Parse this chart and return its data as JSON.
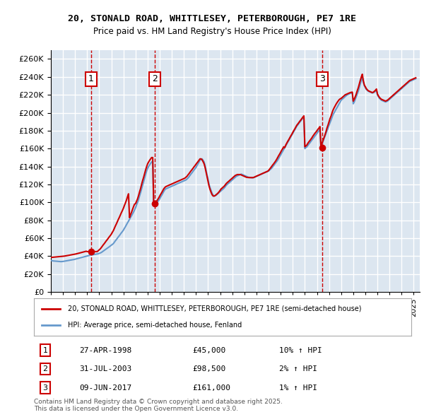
{
  "title_line1": "20, STONALD ROAD, WHITTLESEY, PETERBOROUGH, PE7 1RE",
  "title_line2": "Price paid vs. HM Land Registry's House Price Index (HPI)",
  "ylabel": "",
  "ylim": [
    0,
    270000
  ],
  "yticks": [
    0,
    20000,
    40000,
    60000,
    80000,
    100000,
    120000,
    140000,
    160000,
    180000,
    200000,
    220000,
    240000,
    260000
  ],
  "xlim_start": 1995.0,
  "xlim_end": 2025.5,
  "background_color": "#ffffff",
  "plot_bg_color": "#dce6f0",
  "grid_color": "#ffffff",
  "hpi_line_color": "#6699cc",
  "price_line_color": "#cc0000",
  "sale_marker_color": "#cc0000",
  "vline_color": "#cc0000",
  "legend_label_price": "20, STONALD ROAD, WHITTLESEY, PETERBOROUGH, PE7 1RE (semi-detached house)",
  "legend_label_hpi": "HPI: Average price, semi-detached house, Fenland",
  "sales": [
    {
      "num": 1,
      "date_label": "27-APR-1998",
      "price": 45000,
      "pct": "10%",
      "year": 1998.32
    },
    {
      "num": 2,
      "date_label": "31-JUL-2003",
      "price": 98500,
      "pct": "2%",
      "year": 2003.58
    },
    {
      "num": 3,
      "date_label": "09-JUN-2017",
      "price": 161000,
      "pct": "1%",
      "year": 2017.44
    }
  ],
  "footer_text": "Contains HM Land Registry data © Crown copyright and database right 2025.\nThis data is licensed under the Open Government Licence v3.0.",
  "hpi_data": {
    "years": [
      1995.0,
      1995.08,
      1995.17,
      1995.25,
      1995.33,
      1995.42,
      1995.5,
      1995.58,
      1995.67,
      1995.75,
      1995.83,
      1995.92,
      1996.0,
      1996.08,
      1996.17,
      1996.25,
      1996.33,
      1996.42,
      1996.5,
      1996.58,
      1996.67,
      1996.75,
      1996.83,
      1996.92,
      1997.0,
      1997.08,
      1997.17,
      1997.25,
      1997.33,
      1997.42,
      1997.5,
      1997.58,
      1997.67,
      1997.75,
      1997.83,
      1997.92,
      1998.0,
      1998.08,
      1998.17,
      1998.25,
      1998.33,
      1998.42,
      1998.5,
      1998.58,
      1998.67,
      1998.75,
      1998.83,
      1998.92,
      1999.0,
      1999.08,
      1999.17,
      1999.25,
      1999.33,
      1999.42,
      1999.5,
      1999.58,
      1999.67,
      1999.75,
      1999.83,
      1999.92,
      2000.0,
      2000.08,
      2000.17,
      2000.25,
      2000.33,
      2000.42,
      2000.5,
      2000.58,
      2000.67,
      2000.75,
      2000.83,
      2000.92,
      2001.0,
      2001.08,
      2001.17,
      2001.25,
      2001.33,
      2001.42,
      2001.5,
      2001.58,
      2001.67,
      2001.75,
      2001.83,
      2001.92,
      2002.0,
      2002.08,
      2002.17,
      2002.25,
      2002.33,
      2002.42,
      2002.5,
      2002.58,
      2002.67,
      2002.75,
      2002.83,
      2002.92,
      2003.0,
      2003.08,
      2003.17,
      2003.25,
      2003.33,
      2003.42,
      2003.5,
      2003.58,
      2003.67,
      2003.75,
      2003.83,
      2003.92,
      2004.0,
      2004.08,
      2004.17,
      2004.25,
      2004.33,
      2004.42,
      2004.5,
      2004.58,
      2004.67,
      2004.75,
      2004.83,
      2004.92,
      2005.0,
      2005.08,
      2005.17,
      2005.25,
      2005.33,
      2005.42,
      2005.5,
      2005.58,
      2005.67,
      2005.75,
      2005.83,
      2005.92,
      2006.0,
      2006.08,
      2006.17,
      2006.25,
      2006.33,
      2006.42,
      2006.5,
      2006.58,
      2006.67,
      2006.75,
      2006.83,
      2006.92,
      2007.0,
      2007.08,
      2007.17,
      2007.25,
      2007.33,
      2007.42,
      2007.5,
      2007.58,
      2007.67,
      2007.75,
      2007.83,
      2007.92,
      2008.0,
      2008.08,
      2008.17,
      2008.25,
      2008.33,
      2008.42,
      2008.5,
      2008.58,
      2008.67,
      2008.75,
      2008.83,
      2008.92,
      2009.0,
      2009.08,
      2009.17,
      2009.25,
      2009.33,
      2009.42,
      2009.5,
      2009.58,
      2009.67,
      2009.75,
      2009.83,
      2009.92,
      2010.0,
      2010.08,
      2010.17,
      2010.25,
      2010.33,
      2010.42,
      2010.5,
      2010.58,
      2010.67,
      2010.75,
      2010.83,
      2010.92,
      2011.0,
      2011.08,
      2011.17,
      2011.25,
      2011.33,
      2011.42,
      2011.5,
      2011.58,
      2011.67,
      2011.75,
      2011.83,
      2011.92,
      2012.0,
      2012.08,
      2012.17,
      2012.25,
      2012.33,
      2012.42,
      2012.5,
      2012.58,
      2012.67,
      2012.75,
      2012.83,
      2012.92,
      2013.0,
      2013.08,
      2013.17,
      2013.25,
      2013.33,
      2013.42,
      2013.5,
      2013.58,
      2013.67,
      2013.75,
      2013.83,
      2013.92,
      2014.0,
      2014.08,
      2014.17,
      2014.25,
      2014.33,
      2014.42,
      2014.5,
      2014.58,
      2014.67,
      2014.75,
      2014.83,
      2014.92,
      2015.0,
      2015.08,
      2015.17,
      2015.25,
      2015.33,
      2015.42,
      2015.5,
      2015.58,
      2015.67,
      2015.75,
      2015.83,
      2015.92,
      2016.0,
      2016.08,
      2016.17,
      2016.25,
      2016.33,
      2016.42,
      2016.5,
      2016.58,
      2016.67,
      2016.75,
      2016.83,
      2016.92,
      2017.0,
      2017.08,
      2017.17,
      2017.25,
      2017.33,
      2017.42,
      2017.5,
      2017.58,
      2017.67,
      2017.75,
      2017.83,
      2017.92,
      2018.0,
      2018.08,
      2018.17,
      2018.25,
      2018.33,
      2018.42,
      2018.5,
      2018.58,
      2018.67,
      2018.75,
      2018.83,
      2018.92,
      2019.0,
      2019.08,
      2019.17,
      2019.25,
      2019.33,
      2019.42,
      2019.5,
      2019.58,
      2019.67,
      2019.75,
      2019.83,
      2019.92,
      2020.0,
      2020.08,
      2020.17,
      2020.25,
      2020.33,
      2020.42,
      2020.5,
      2020.58,
      2020.67,
      2020.75,
      2020.83,
      2020.92,
      2021.0,
      2021.08,
      2021.17,
      2021.25,
      2021.33,
      2021.42,
      2021.5,
      2021.58,
      2021.67,
      2021.75,
      2021.83,
      2021.92,
      2022.0,
      2022.08,
      2022.17,
      2022.25,
      2022.33,
      2022.42,
      2022.5,
      2022.58,
      2022.67,
      2022.75,
      2022.83,
      2022.92,
      2023.0,
      2023.08,
      2023.17,
      2023.25,
      2023.33,
      2023.42,
      2023.5,
      2023.58,
      2023.67,
      2023.75,
      2023.83,
      2023.92,
      2024.0,
      2024.08,
      2024.17,
      2024.25,
      2024.33,
      2024.42,
      2024.5,
      2024.58,
      2024.67,
      2024.75,
      2024.83,
      2024.92,
      2025.0,
      2025.08,
      2025.17
    ],
    "hpi_values": [
      35000,
      34800,
      34600,
      34500,
      34400,
      34300,
      34200,
      34100,
      34000,
      33900,
      33800,
      33900,
      34000,
      34200,
      34400,
      34600,
      34800,
      35000,
      35200,
      35400,
      35600,
      35800,
      36000,
      36200,
      36500,
      36800,
      37100,
      37400,
      37700,
      38000,
      38300,
      38600,
      38900,
      39200,
      39500,
      39800,
      40100,
      40400,
      40700,
      41000,
      41200,
      41400,
      41600,
      41800,
      42000,
      42200,
      42400,
      42600,
      43000,
      43500,
      44000,
      44800,
      45600,
      46400,
      47200,
      48000,
      48800,
      49600,
      50400,
      51200,
      52000,
      53000,
      54000,
      55500,
      57000,
      58500,
      60000,
      61500,
      63000,
      64500,
      66000,
      67500,
      69000,
      71000,
      73000,
      75000,
      77000,
      79000,
      81000,
      83000,
      85000,
      87000,
      89000,
      91500,
      94000,
      97000,
      100000,
      103000,
      107000,
      111000,
      115000,
      119000,
      123000,
      127000,
      131000,
      135000,
      138000,
      140000,
      142000,
      143500,
      145000,
      146000,
      97000,
      98500,
      99000,
      100000,
      101000,
      102000,
      104000,
      106000,
      108000,
      110000,
      112000,
      114000,
      115000,
      115500,
      116000,
      116500,
      117000,
      117500,
      118000,
      118500,
      119000,
      119500,
      120000,
      120500,
      121000,
      121500,
      122000,
      122500,
      123000,
      123500,
      124000,
      124500,
      125000,
      126000,
      127000,
      128500,
      130000,
      131500,
      133000,
      134500,
      136000,
      137500,
      139000,
      141000,
      143000,
      145000,
      147000,
      148000,
      148500,
      147000,
      145000,
      141000,
      136000,
      130000,
      125000,
      120000,
      116000,
      113000,
      110000,
      108000,
      107000,
      107500,
      108000,
      109000,
      110000,
      111000,
      112000,
      113000,
      114000,
      115000,
      116000,
      117500,
      119000,
      120000,
      121000,
      122000,
      123000,
      124000,
      125000,
      126000,
      127000,
      128000,
      129000,
      129500,
      130000,
      130500,
      131000,
      131500,
      131000,
      130500,
      130000,
      129500,
      129000,
      128500,
      128000,
      127800,
      127600,
      127500,
      127400,
      127500,
      128000,
      128500,
      129000,
      129500,
      130000,
      130500,
      131000,
      131500,
      132000,
      132500,
      133000,
      133500,
      134000,
      134500,
      135000,
      136000,
      137000,
      138000,
      139500,
      141000,
      142500,
      144000,
      145500,
      147000,
      149000,
      151000,
      153000,
      155000,
      157000,
      159000,
      161000,
      163000,
      165000,
      167000,
      169000,
      171000,
      173000,
      175000,
      177000,
      179000,
      181000,
      183000,
      185000,
      186500,
      188000,
      189500,
      191000,
      192500,
      194000,
      195500,
      160000,
      161000,
      162000,
      163500,
      165000,
      166500,
      168000,
      169500,
      171000,
      172500,
      174000,
      175500,
      177000,
      178500,
      180000,
      181500,
      161000,
      165000,
      168000,
      171000,
      174000,
      177000,
      180000,
      183000,
      186000,
      189000,
      192000,
      195000,
      198000,
      200000,
      202000,
      204000,
      206000,
      208000,
      210000,
      212000,
      214000,
      215000,
      216000,
      217000,
      218000,
      219000,
      220000,
      220500,
      221000,
      221500,
      222000,
      222500,
      210000,
      212000,
      215000,
      218000,
      221000,
      224000,
      228000,
      232000,
      236000,
      240000,
      234000,
      230000,
      228000,
      226000,
      225000,
      224000,
      223500,
      223000,
      222500,
      222000,
      222500,
      223000,
      224000,
      225000,
      220000,
      218000,
      216000,
      215000,
      214000,
      213500,
      213000,
      212500,
      212000,
      212500,
      213000,
      214000,
      215000,
      216000,
      217000,
      218000,
      219000,
      220000,
      221000,
      222000,
      223000,
      224000,
      225000,
      226000,
      227000,
      228000,
      229000,
      230000,
      231000,
      232000,
      233000,
      234000,
      235000,
      235500,
      236000,
      236500,
      237000,
      237500,
      238000
    ],
    "price_values": [
      38500,
      38600,
      38700,
      38800,
      38900,
      39000,
      39100,
      39200,
      39300,
      39400,
      39500,
      39600,
      39700,
      39900,
      40100,
      40300,
      40500,
      40700,
      40900,
      41100,
      41300,
      41500,
      41700,
      41900,
      42100,
      42400,
      42700,
      43000,
      43300,
      43600,
      43900,
      44200,
      44500,
      44800,
      45100,
      45400,
      45000,
      45000,
      45000,
      45000,
      45000,
      45000,
      45000,
      45000,
      45000,
      45000,
      45000,
      46000,
      47000,
      48000,
      49500,
      51000,
      52500,
      54000,
      55500,
      57000,
      58500,
      60000,
      61500,
      63000,
      64500,
      66500,
      68500,
      71000,
      73500,
      76000,
      78500,
      81000,
      83500,
      86000,
      88500,
      91000,
      93500,
      96500,
      99500,
      102500,
      106000,
      109500,
      83000,
      86000,
      89000,
      92000,
      95000,
      98000,
      98500,
      101000,
      104000,
      107500,
      111500,
      115500,
      120000,
      124000,
      128000,
      132000,
      136000,
      140000,
      143000,
      145000,
      147000,
      148500,
      150000,
      150000,
      98500,
      99000,
      100000,
      101500,
      103000,
      105000,
      107000,
      109000,
      111000,
      113000,
      115000,
      116500,
      117500,
      118000,
      118500,
      119000,
      119500,
      120000,
      120500,
      121000,
      121500,
      122000,
      122500,
      123000,
      123500,
      124000,
      124500,
      125000,
      125500,
      126000,
      126500,
      127000,
      128000,
      129000,
      130500,
      132000,
      133500,
      135000,
      136500,
      138000,
      139500,
      141000,
      142500,
      144000,
      145500,
      147000,
      148500,
      148500,
      147500,
      145500,
      143000,
      139000,
      134000,
      128000,
      123000,
      118000,
      114000,
      111000,
      108500,
      107000,
      107000,
      107500,
      108500,
      109500,
      110500,
      112000,
      113500,
      115000,
      116000,
      117000,
      118000,
      119500,
      121000,
      122000,
      123000,
      124000,
      125000,
      126000,
      127000,
      128000,
      129000,
      130000,
      130500,
      131000,
      131000,
      131000,
      131000,
      130500,
      130000,
      129500,
      129000,
      128500,
      128000,
      127800,
      127700,
      127600,
      127600,
      127600,
      127600,
      127700,
      128200,
      128700,
      129200,
      129700,
      130200,
      130700,
      131200,
      131700,
      132200,
      132700,
      133200,
      133700,
      134200,
      134700,
      135500,
      137000,
      138500,
      140000,
      141500,
      143000,
      144500,
      146000,
      148000,
      150000,
      152000,
      154000,
      156000,
      158000,
      160000,
      162000,
      161000,
      164000,
      166000,
      168000,
      170000,
      172000,
      174000,
      176000,
      178000,
      180000,
      182000,
      184000,
      186000,
      187500,
      189000,
      190500,
      192000,
      193500,
      195000,
      196500,
      162000,
      163000,
      164000,
      166000,
      167500,
      169000,
      170500,
      172000,
      174000,
      175500,
      177000,
      178500,
      180000,
      181500,
      183000,
      184500,
      161000,
      166000,
      169000,
      172000,
      175500,
      179000,
      183000,
      186500,
      190000,
      193500,
      196500,
      200000,
      203000,
      205500,
      207500,
      209500,
      211500,
      213000,
      214500,
      215500,
      216000,
      217000,
      218000,
      219000,
      220000,
      220500,
      221000,
      221500,
      222000,
      222500,
      222800,
      223000,
      213000,
      215000,
      218000,
      221000,
      224500,
      228000,
      232000,
      236000,
      240000,
      243000,
      236000,
      231000,
      229000,
      227000,
      225500,
      224500,
      224000,
      223500,
      223000,
      222500,
      223000,
      224000,
      225000,
      226500,
      221000,
      219000,
      217000,
      216000,
      215000,
      214500,
      214000,
      213500,
      213000,
      213500,
      214000,
      215000,
      216000,
      217000,
      218000,
      219000,
      220000,
      221000,
      222000,
      223000,
      224000,
      225000,
      226000,
      227000,
      228000,
      229000,
      230000,
      231000,
      232000,
      233000,
      234000,
      235000,
      236000,
      236500,
      237000,
      237500,
      238000,
      238500,
      239000
    ]
  }
}
